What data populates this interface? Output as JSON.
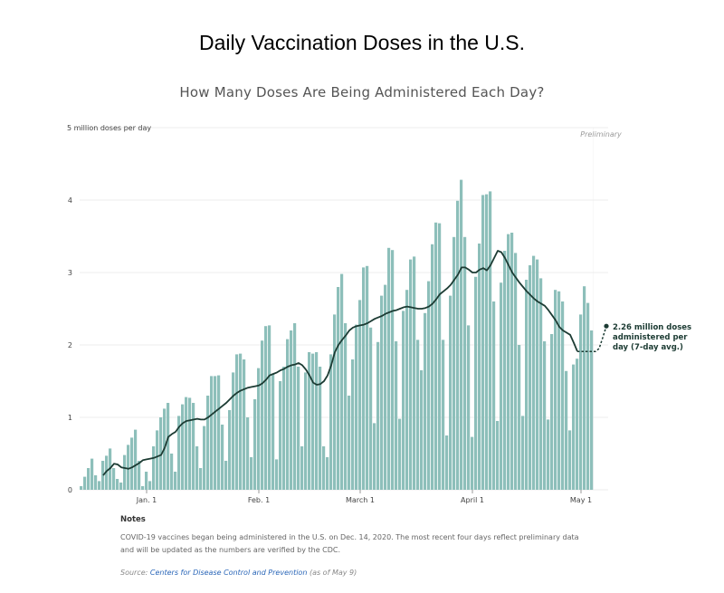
{
  "header": {
    "title": "Daily Vaccination Doses in the U.S.",
    "subtitle": "How Many Doses Are Being Administered Each Day?"
  },
  "notes": {
    "heading": "Notes",
    "text": "COVID-19 vaccines began being administered in the U.S. on Dec. 14, 2020. The most recent four days reflect preliminary data and will be updated as the numbers are verified by the CDC."
  },
  "source": {
    "prefix": "Source: ",
    "link_text": "Centers for Disease Control and Prevention",
    "suffix": " (as of May 9)"
  },
  "chart_data": {
    "type": "bar",
    "ylabel": "million doses per day",
    "ylim": [
      0,
      5
    ],
    "yticks": [
      0,
      1,
      2,
      3,
      4,
      5
    ],
    "xticks": [
      {
        "date": "2021-01-01",
        "label": "Jan. 1"
      },
      {
        "date": "2021-02-01",
        "label": "Feb. 1"
      },
      {
        "date": "2021-03-01",
        "label": "March 1"
      },
      {
        "date": "2021-04-01",
        "label": "April 1"
      },
      {
        "date": "2021-05-01",
        "label": "May 1"
      }
    ],
    "start_date": "2020-12-14",
    "end_date": "2021-05-08",
    "preliminary_label": "Preliminary",
    "preliminary_start": "2021-05-05",
    "values": [
      0.05,
      0.18,
      0.3,
      0.43,
      0.2,
      0.12,
      0.4,
      0.47,
      0.57,
      0.3,
      0.15,
      0.1,
      0.48,
      0.62,
      0.72,
      0.83,
      0.4,
      0.05,
      0.25,
      0.12,
      0.6,
      0.82,
      1.0,
      1.12,
      1.2,
      0.5,
      0.25,
      1.02,
      1.18,
      1.28,
      1.27,
      1.2,
      0.6,
      0.3,
      0.88,
      1.3,
      1.57,
      1.57,
      1.58,
      0.9,
      0.4,
      1.1,
      1.62,
      1.87,
      1.88,
      1.8,
      1.0,
      0.45,
      1.25,
      1.68,
      2.06,
      2.26,
      2.27,
      1.6,
      0.42,
      1.5,
      1.7,
      2.08,
      2.2,
      2.3,
      1.7,
      0.6,
      1.62,
      1.9,
      1.88,
      1.9,
      1.7,
      0.6,
      0.45,
      1.87,
      2.42,
      2.8,
      2.98,
      2.3,
      1.3,
      1.8,
      2.28,
      2.62,
      3.07,
      3.09,
      2.24,
      0.92,
      2.04,
      2.68,
      2.83,
      3.34,
      3.31,
      2.05,
      0.98,
      2.47,
      2.76,
      3.18,
      3.22,
      2.07,
      1.65,
      2.44,
      2.88,
      3.39,
      3.69,
      3.68,
      2.07,
      0.75,
      2.68,
      3.49,
      3.99,
      4.28,
      3.49,
      2.27,
      0.73,
      2.94,
      3.4,
      4.07,
      4.08,
      4.12,
      2.6,
      0.95,
      2.86,
      3.3,
      3.53,
      3.55,
      3.27,
      2.0,
      1.02,
      2.9,
      3.1,
      3.23,
      3.18,
      2.92,
      2.05,
      0.97,
      2.15,
      2.76,
      2.74,
      2.6,
      1.64,
      0.82,
      1.73,
      1.81,
      2.42,
      2.81,
      2.58,
      2.2
    ],
    "avg_series": {
      "name": "7-day avg.",
      "start_date": "2020-12-20",
      "values": [
        0.2,
        0.26,
        0.3,
        0.36,
        0.35,
        0.31,
        0.3,
        0.29,
        0.31,
        0.34,
        0.37,
        0.41,
        0.42,
        0.43,
        0.44,
        0.46,
        0.48,
        0.58,
        0.73,
        0.77,
        0.8,
        0.87,
        0.92,
        0.95,
        0.96,
        0.97,
        0.98,
        0.97,
        0.97,
        1.0,
        1.04,
        1.08,
        1.12,
        1.16,
        1.2,
        1.25,
        1.3,
        1.34,
        1.37,
        1.39,
        1.41,
        1.42,
        1.43,
        1.44,
        1.47,
        1.52,
        1.58,
        1.6,
        1.62,
        1.65,
        1.67,
        1.7,
        1.72,
        1.73,
        1.75,
        1.72,
        1.66,
        1.58,
        1.48,
        1.45,
        1.46,
        1.5,
        1.58,
        1.72,
        1.9,
        2.0,
        2.07,
        2.13,
        2.2,
        2.24,
        2.26,
        2.27,
        2.28,
        2.3,
        2.33,
        2.36,
        2.38,
        2.4,
        2.43,
        2.45,
        2.47,
        2.48,
        2.5,
        2.52,
        2.53,
        2.52,
        2.51,
        2.5,
        2.5,
        2.51,
        2.53,
        2.57,
        2.63,
        2.7,
        2.74,
        2.78,
        2.83,
        2.9,
        2.97,
        3.07,
        3.07,
        3.04,
        3.0,
        3.0,
        3.04,
        3.06,
        3.03,
        3.1,
        3.2,
        3.3,
        3.28,
        3.2,
        3.1,
        3.0,
        2.93,
        2.86,
        2.8,
        2.74,
        2.69,
        2.64,
        2.6,
        2.57,
        2.54,
        2.48,
        2.41,
        2.34,
        2.25,
        2.2,
        2.17,
        2.14,
        2.03,
        1.91
      ],
      "prelim_start_date": "2021-05-05",
      "prelim_values": [
        1.91,
        1.95,
        2.1,
        2.26
      ]
    },
    "annotation": {
      "lines": [
        "2.26 million doses",
        "administered per",
        "day (7-day avg.)"
      ]
    }
  },
  "colors": {
    "bar": "#8dbfba",
    "bar_preliminary": "#c5dfdc",
    "avg_line": "#1c3b33",
    "preliminary_band": "#f0f0f0",
    "grid": "#ececec",
    "axis_text": "#444444",
    "annotation_text": "#1c3b33"
  }
}
